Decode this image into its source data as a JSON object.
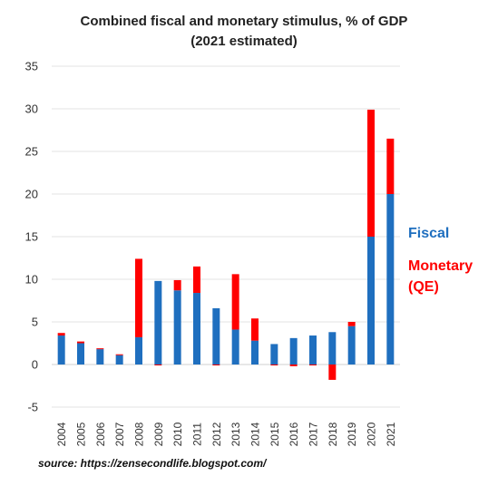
{
  "chart_data": {
    "type": "bar",
    "stacked": true,
    "title": "Combined fiscal and monetary stimulus, % of GDP",
    "subtitle": "(2021 estimated)",
    "categories": [
      "2004",
      "2005",
      "2006",
      "2007",
      "2008",
      "2009",
      "2010",
      "2011",
      "2012",
      "2013",
      "2014",
      "2015",
      "2016",
      "2017",
      "2018",
      "2019",
      "2020",
      "2021"
    ],
    "series": [
      {
        "name": "Fiscal",
        "color": "#1f6fbf",
        "values": [
          3.4,
          2.5,
          1.8,
          1.1,
          3.2,
          9.8,
          8.7,
          8.4,
          6.6,
          4.1,
          2.8,
          2.4,
          3.1,
          3.4,
          3.8,
          4.5,
          15.0,
          20.0
        ]
      },
      {
        "name": "Monetary\n(QE)",
        "color": "#ff0000",
        "values": [
          0.3,
          0.2,
          0.1,
          0.1,
          9.2,
          -0.1,
          1.2,
          3.1,
          -0.1,
          6.5,
          2.6,
          -0.1,
          -0.2,
          -0.1,
          -1.8,
          0.5,
          14.9,
          6.5
        ]
      }
    ],
    "ylim": [
      -5,
      35
    ],
    "yticks": [
      -5,
      0,
      5,
      10,
      15,
      20,
      25,
      30,
      35
    ],
    "grid": true,
    "legend_position": "right",
    "xlabel": "",
    "ylabel": ""
  },
  "legend": {
    "fiscal_label": "Fiscal",
    "monetary_line1": "Monetary",
    "monetary_line2": "(QE)"
  },
  "source": "source: https://zensecondlife.blogspot.com/"
}
